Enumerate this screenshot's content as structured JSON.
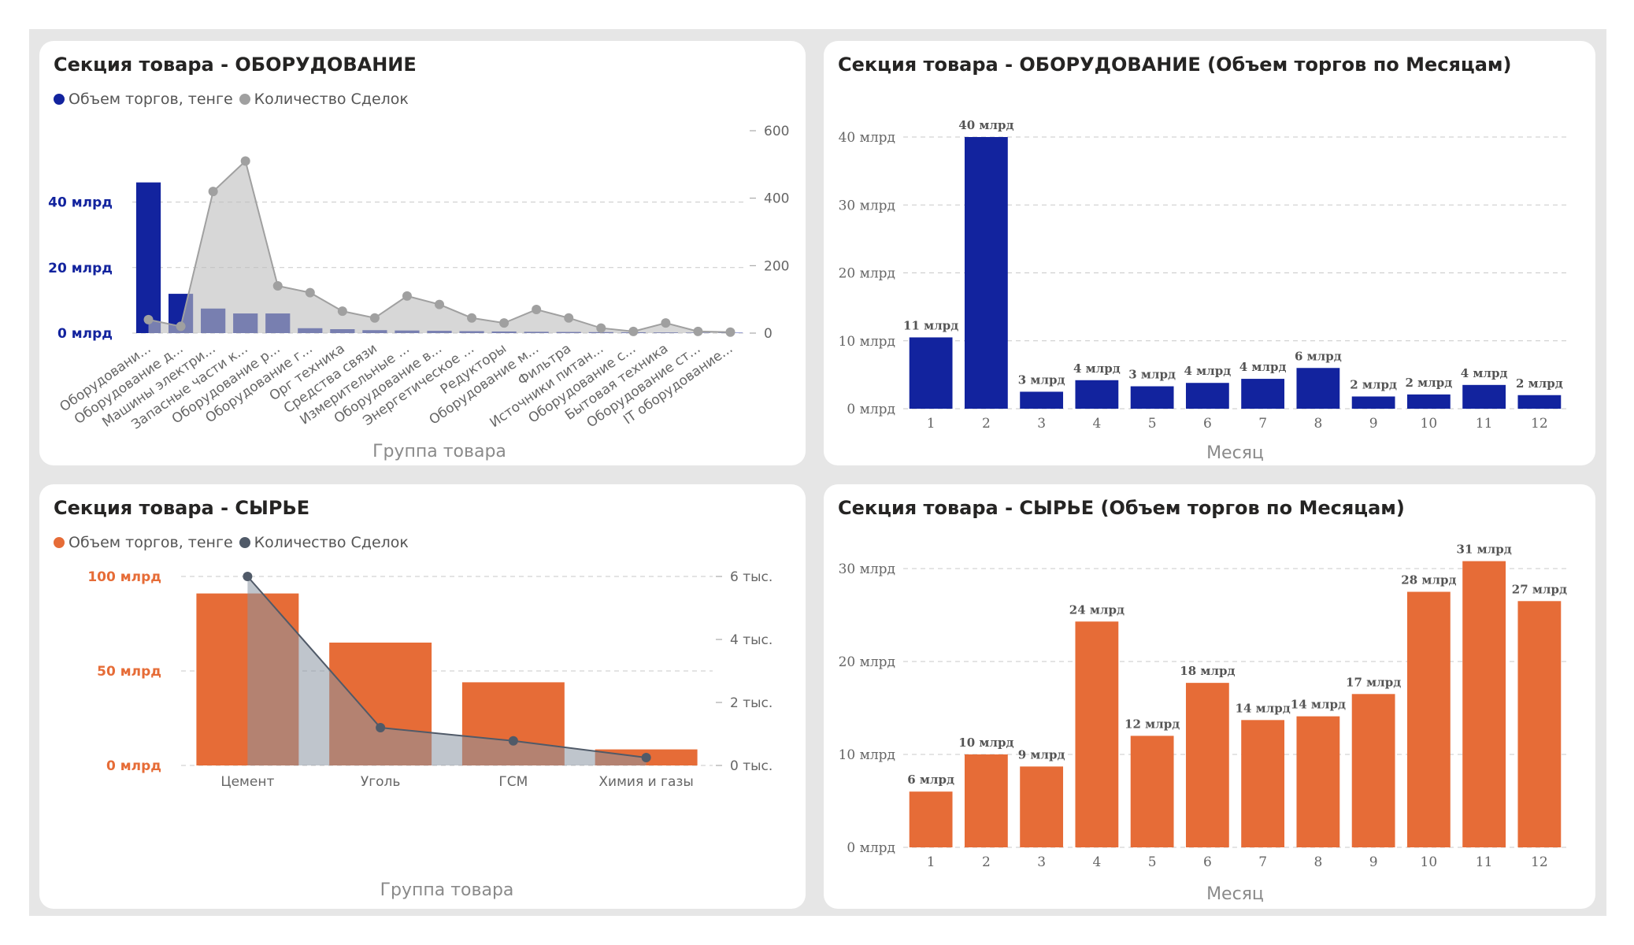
{
  "panels": {
    "p1": {
      "title": "Секция товара - ОБОРУДОВАНИЕ",
      "legend": [
        {
          "label": "Объем торгов, тенге",
          "color": "#12239e"
        },
        {
          "label": "Количество Сделок",
          "color": "#a0a0a0"
        }
      ]
    },
    "p2": {
      "title": "Секция товара - ОБОРУДОВАНИЕ (Объем торгов по Месяцам)"
    },
    "p3": {
      "title": "Секция товара - СЫРЬЕ",
      "legend": [
        {
          "label": "Объем торгов, тенге",
          "color": "#e66c37"
        },
        {
          "label": "Количество Сделок",
          "color": "#505a68"
        }
      ]
    },
    "p4": {
      "title": "Секция товара - СЫРЬЕ (Объем торгов по Месяцам)"
    }
  },
  "chart_data": [
    {
      "type": "bar",
      "title": "Секция товара - ОБОРУДОВАНИЕ",
      "xlabel": "Группа товара",
      "categories": [
        "Оборудовани...",
        "Оборудование д...",
        "Машины электри...",
        "Запасные части к...",
        "Оборудование р...",
        "Оборудование г...",
        "Орг техника",
        "Средства связи",
        "Измерительные ...",
        "Оборудование в...",
        "Энергетическое ...",
        "Редукторы",
        "Оборудование м...",
        "Фильтра",
        "Источники питан...",
        "Оборудование с...",
        "Бытовая техника",
        "Оборудование ст...",
        "IT оборудование..."
      ],
      "series": [
        {
          "name": "Объем торгов, тенге",
          "type": "bar",
          "axis": "left",
          "color": "#12239e",
          "values": [
            46,
            12,
            7.5,
            6,
            6,
            1.5,
            1.2,
            0.9,
            0.8,
            0.7,
            0.6,
            0.5,
            0.4,
            0.35,
            0.3,
            0.25,
            0.2,
            0.15,
            0.1
          ]
        },
        {
          "name": "Количество Сделок",
          "type": "area",
          "axis": "right",
          "color": "#a0a0a0",
          "values": [
            40,
            20,
            420,
            510,
            140,
            120,
            65,
            45,
            110,
            85,
            45,
            30,
            70,
            45,
            15,
            5,
            30,
            5,
            3
          ]
        }
      ],
      "left_axis": {
        "ticks": [
          {
            "v": 0,
            "label": "0 млрд"
          },
          {
            "v": 20,
            "label": "20 млрд"
          },
          {
            "v": 40,
            "label": "40 млрд"
          }
        ],
        "max": 50,
        "color": "#12239e"
      },
      "right_axis": {
        "ticks": [
          {
            "v": 0,
            "label": "0"
          },
          {
            "v": 200,
            "label": "200"
          },
          {
            "v": 400,
            "label": "400"
          },
          {
            "v": 600,
            "label": "600"
          }
        ],
        "max": 600
      }
    },
    {
      "type": "bar",
      "title": "Секция товара - ОБОРУДОВАНИЕ (Объем торгов по Месяцам)",
      "xlabel": "Месяц",
      "categories": [
        "1",
        "2",
        "3",
        "4",
        "5",
        "6",
        "7",
        "8",
        "9",
        "10",
        "11",
        "12"
      ],
      "series": [
        {
          "color": "#12239e",
          "values": [
            10.5,
            40,
            2.5,
            4.2,
            3.3,
            3.8,
            4.4,
            6,
            1.8,
            2.1,
            3.5,
            2
          ]
        }
      ],
      "data_labels": [
        "11 млрд",
        "40 млрд",
        "3 млрд",
        "4 млрд",
        "3 млрд",
        "4 млрд",
        "4 млрд",
        "6 млрд",
        "2 млрд",
        "2 млрд",
        "4 млрд",
        "2 млрд"
      ],
      "y_axis": {
        "ticks": [
          {
            "v": 0,
            "label": "0 млрд"
          },
          {
            "v": 10,
            "label": "10 млрд"
          },
          {
            "v": 20,
            "label": "20 млрд"
          },
          {
            "v": 30,
            "label": "30 млрд"
          },
          {
            "v": 40,
            "label": "40 млрд"
          }
        ],
        "max": 40
      }
    },
    {
      "type": "bar",
      "title": "Секция товара - СЫРЬЕ",
      "xlabel": "Группа товара",
      "categories": [
        "Цемент",
        "Уголь",
        "ГСМ",
        "Химия и газы"
      ],
      "series": [
        {
          "name": "Объем торгов, тенге",
          "type": "bar",
          "axis": "left",
          "color": "#e66c37",
          "values": [
            91,
            65,
            44,
            8.5
          ]
        },
        {
          "name": "Количество Сделок",
          "type": "area",
          "axis": "right",
          "color": "#505a68",
          "values": [
            6000,
            1200,
            780,
            250
          ]
        }
      ],
      "left_axis": {
        "ticks": [
          {
            "v": 0,
            "label": "0 млрд"
          },
          {
            "v": 50,
            "label": "50 млрд"
          },
          {
            "v": 100,
            "label": "100 млрд"
          }
        ],
        "max": 100,
        "color": "#e66c37"
      },
      "right_axis": {
        "ticks": [
          {
            "v": 0,
            "label": "0 тыс."
          },
          {
            "v": 2000,
            "label": "2 тыс."
          },
          {
            "v": 4000,
            "label": "4 тыс."
          },
          {
            "v": 6000,
            "label": "6 тыс."
          }
        ],
        "max": 6000
      }
    },
    {
      "type": "bar",
      "title": "Секция товара - СЫРЬЕ (Объем торгов по Месяцам)",
      "xlabel": "Месяц",
      "categories": [
        "1",
        "2",
        "3",
        "4",
        "5",
        "6",
        "7",
        "8",
        "9",
        "10",
        "11",
        "12"
      ],
      "series": [
        {
          "color": "#e66c37",
          "values": [
            6,
            10,
            8.7,
            24.3,
            12,
            17.7,
            13.7,
            14.1,
            16.5,
            27.5,
            30.8,
            26.5
          ]
        }
      ],
      "data_labels": [
        "6 млрд",
        "10 млрд",
        "9 млрд",
        "24 млрд",
        "12 млрд",
        "18 млрд",
        "14 млрд",
        "14 млрд",
        "17 млрд",
        "28 млрд",
        "31 млрд",
        "27 млрд"
      ],
      "y_axis": {
        "ticks": [
          {
            "v": 0,
            "label": "0 млрд"
          },
          {
            "v": 10,
            "label": "10 млрд"
          },
          {
            "v": 20,
            "label": "20 млрд"
          },
          {
            "v": 30,
            "label": "30 млрд"
          }
        ],
        "max": 30
      }
    }
  ]
}
